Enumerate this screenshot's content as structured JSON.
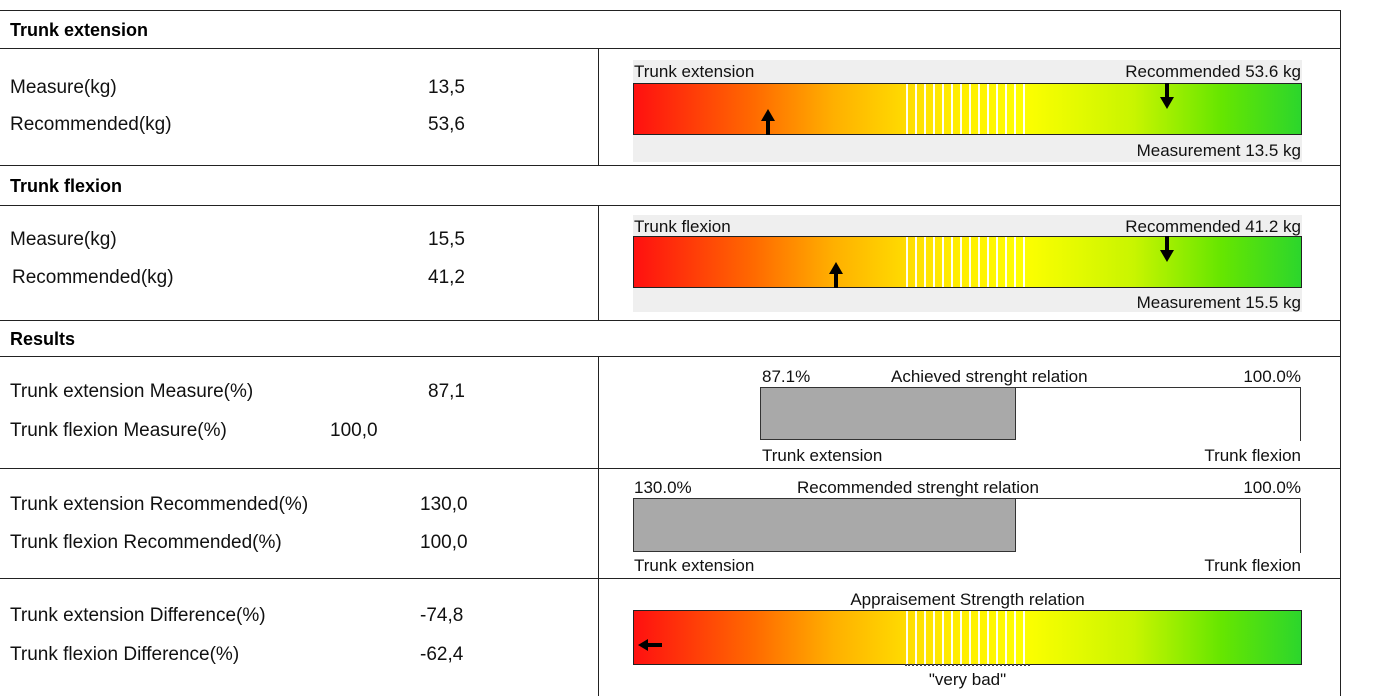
{
  "sections": [
    {
      "title": "Trunk extension",
      "rows": [
        {
          "label": "Measure(kg)",
          "value": "13,5"
        },
        {
          "label": "Recommended(kg)",
          "value": "53,6"
        }
      ],
      "gauge": {
        "title": "Trunk extension",
        "recommended": "Recommended 53.6 kg",
        "measurement": "Measurement 13.5 kg"
      }
    },
    {
      "title": "Trunk flexion",
      "rows": [
        {
          "label": "Measure(kg)",
          "value": "15,5"
        },
        {
          "label": "Recommended(kg)",
          "value": "41,2"
        }
      ],
      "gauge": {
        "title": "Trunk flexion",
        "recommended": "Recommended 41.2 kg",
        "measurement": "Measurement 15.5 kg"
      }
    }
  ],
  "results": {
    "title": "Results",
    "achieved": {
      "rows": [
        {
          "label": "Trunk extension Measure(%)",
          "value": "87,1"
        },
        {
          "label": "Trunk flexion Measure(%)",
          "value": "100,0"
        }
      ],
      "chart": {
        "left_value": "87.1%",
        "title": "Achieved strenght relation",
        "right_value": "100.0%",
        "left_label": "Trunk extension",
        "right_label": "Trunk flexion"
      }
    },
    "recommended": {
      "rows": [
        {
          "label": "Trunk extension  Recommended(%)",
          "value": "130,0"
        },
        {
          "label": "Trunk flexion Recommended(%)",
          "value": "100,0"
        }
      ],
      "chart": {
        "left_value": "130.0%",
        "title": "Recommended strenght relation",
        "right_value": "100.0%",
        "left_label": "Trunk extension",
        "right_label": "Trunk flexion"
      }
    },
    "difference": {
      "rows": [
        {
          "label": "Trunk extension Difference(%)",
          "value": "-74,8"
        },
        {
          "label": "Trunk flexion Difference(%)",
          "value": "-62,4"
        }
      ],
      "chart": {
        "title": "Appraisement Strength relation",
        "rating": "\"very bad\""
      }
    }
  }
}
